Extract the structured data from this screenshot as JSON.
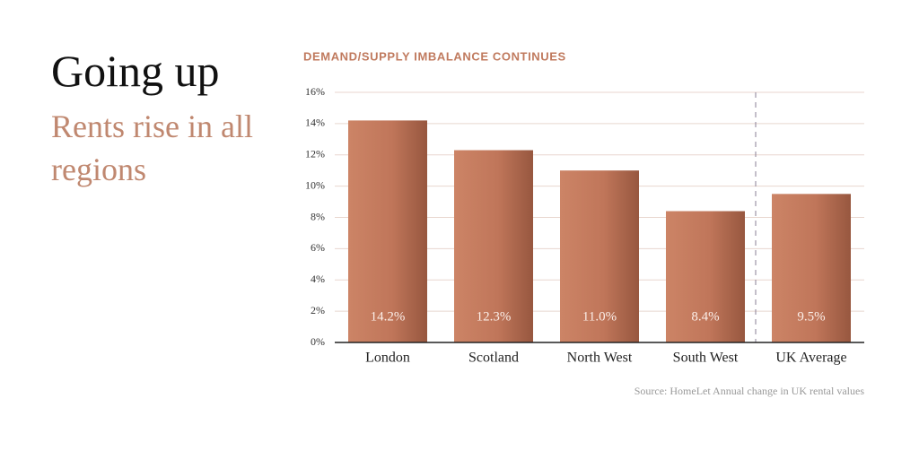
{
  "headline": "Going up",
  "subheadline": "Rents rise in all regions",
  "chart_data": {
    "type": "bar",
    "title": "DEMAND/SUPPLY IMBALANCE CONTINUES",
    "categories": [
      "London",
      "Scotland",
      "North West",
      "South West",
      "UK Average"
    ],
    "values": [
      14.2,
      12.3,
      11.0,
      8.4,
      9.5
    ],
    "value_labels": [
      "14.2%",
      "12.3%",
      "11.0%",
      "8.4%",
      "9.5%"
    ],
    "ylim": [
      0,
      16
    ],
    "yticks": [
      {
        "value": 0,
        "label": "0%"
      },
      {
        "value": 2,
        "label": "2%"
      },
      {
        "value": 4,
        "label": "4%"
      },
      {
        "value": 6,
        "label": "6%"
      },
      {
        "value": 8,
        "label": "8%"
      },
      {
        "value": 10,
        "label": "10%"
      },
      {
        "value": 12,
        "label": "12%"
      },
      {
        "value": 14,
        "label": "14%"
      },
      {
        "value": 16,
        "label": "16%"
      }
    ],
    "grid": true,
    "color": "#c27a5c",
    "source": "Source: HomeLet Annual change in UK rental values"
  }
}
